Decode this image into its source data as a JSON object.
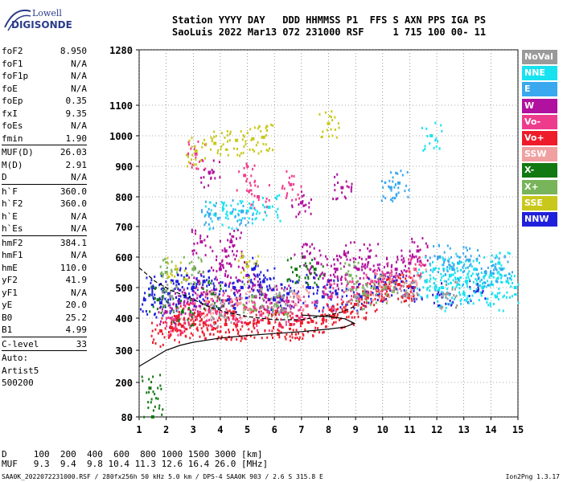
{
  "logo": {
    "line1": "Lowell",
    "line2": "DIGISONDE"
  },
  "header": {
    "labels": "Station YYYY DAY   DDD HHMMSS P1  FFS S AXN PPS IGA PS",
    "values": "SaoLuis 2022 Mar13 072 231000 RSF     1 715 100 00- 11"
  },
  "params": {
    "group1": [
      {
        "label": "foF2",
        "value": "8.950"
      },
      {
        "label": "foF1",
        "value": "N/A"
      },
      {
        "label": "foF1p",
        "value": "N/A"
      },
      {
        "label": "foE",
        "value": "N/A"
      },
      {
        "label": "foEp",
        "value": "0.35"
      },
      {
        "label": "fxI",
        "value": "9.35"
      },
      {
        "label": "foEs",
        "value": "N/A"
      },
      {
        "label": "fmin",
        "value": "1.90"
      }
    ],
    "group2": [
      {
        "label": "MUF(D)",
        "value": "26.03"
      },
      {
        "label": "M(D)",
        "value": "2.91"
      },
      {
        "label": "D",
        "value": "N/A"
      }
    ],
    "group3": [
      {
        "label": "h`F",
        "value": "360.0"
      },
      {
        "label": "h`F2",
        "value": "360.0"
      },
      {
        "label": "h`E",
        "value": "N/A"
      },
      {
        "label": "h`Es",
        "value": "N/A"
      }
    ],
    "group4": [
      {
        "label": "hmF2",
        "value": "384.1"
      },
      {
        "label": "hmF1",
        "value": "N/A"
      },
      {
        "label": "hmE",
        "value": "110.0"
      },
      {
        "label": "yF2",
        "value": "41.9"
      },
      {
        "label": "yF1",
        "value": "N/A"
      },
      {
        "label": "yE",
        "value": "20.0"
      },
      {
        "label": "B0",
        "value": "25.2"
      },
      {
        "label": "B1",
        "value": "4.99"
      }
    ],
    "group5": [
      {
        "label": "C-level",
        "value": "33"
      }
    ],
    "auto_lines": [
      "Auto:",
      "Artist5",
      "500200"
    ]
  },
  "legend": [
    {
      "label": "NoVal",
      "color": "#9a9a9a"
    },
    {
      "label": "NNE",
      "color": "#19e2f0"
    },
    {
      "label": "E",
      "color": "#3aa8ee"
    },
    {
      "label": "W",
      "color": "#b0119e"
    },
    {
      "label": "Vo-",
      "color": "#ee3c8c"
    },
    {
      "label": "Vo+",
      "color": "#ee1c2a"
    },
    {
      "label": "SSW",
      "color": "#f0a0a0"
    },
    {
      "label": "X-",
      "color": "#127812"
    },
    {
      "label": "X+",
      "color": "#78b45a"
    },
    {
      "label": "SSE",
      "color": "#c8c81c"
    },
    {
      "label": "NNW",
      "color": "#2020dc"
    }
  ],
  "distance_table": {
    "row1": "D     100  200  400  600  800 1000 1500 3000 [km]",
    "row2": "MUF   9.3  9.4  9.8 10.4 11.3 12.6 16.4 26.0 [MHz]"
  },
  "footer": {
    "left": "SAA0K_2022072231000.RSF / 280fx256h 50 kHz 5.0 km / DPS-4 SAA0K 903 / 2.6 S 315.8 E",
    "right": "Ion2Png 1.3.17"
  },
  "chart_data": {
    "type": "scatter",
    "title": "",
    "xlabel": "",
    "ylabel": "",
    "xlim": [
      1,
      15
    ],
    "ylim": [
      80,
      1280
    ],
    "x_ticks": [
      1,
      2,
      3,
      4,
      5,
      6,
      7,
      8,
      9,
      10,
      11,
      12,
      13,
      14,
      15
    ],
    "y_ticks": [
      80,
      200,
      300,
      400,
      500,
      600,
      700,
      800,
      900,
      1000,
      1100,
      1280
    ],
    "grid": true,
    "legend_position": "right",
    "series": [
      {
        "name": "W",
        "points": [
          [
            2.0,
            420
          ],
          [
            2.5,
            450
          ],
          [
            3.0,
            460
          ],
          [
            3.2,
            520
          ],
          [
            3.5,
            480
          ],
          [
            4.0,
            560
          ],
          [
            4.2,
            620
          ],
          [
            4.5,
            500
          ],
          [
            5.0,
            540
          ],
          [
            5.3,
            470
          ],
          [
            5.8,
            460
          ],
          [
            6.2,
            470
          ],
          [
            6.5,
            455
          ],
          [
            7.1,
            600
          ],
          [
            7.6,
            580
          ],
          [
            8.0,
            520
          ],
          [
            8.3,
            560
          ],
          [
            8.6,
            610
          ],
          [
            9.1,
            560
          ],
          [
            9.5,
            600
          ],
          [
            10.0,
            540
          ],
          [
            10.5,
            560
          ],
          [
            11.0,
            580
          ],
          [
            11.3,
            620
          ],
          [
            3.3,
            650
          ],
          [
            4.4,
            650
          ],
          [
            3.6,
            880
          ],
          [
            7.0,
            780
          ],
          [
            8.5,
            830
          ]
        ]
      },
      {
        "name": "NNW",
        "points": [
          [
            1.2,
            460
          ],
          [
            1.5,
            500
          ],
          [
            1.8,
            450
          ],
          [
            2.1,
            480
          ],
          [
            2.4,
            520
          ],
          [
            2.7,
            470
          ],
          [
            3.0,
            500
          ],
          [
            3.4,
            520
          ],
          [
            3.8,
            480
          ],
          [
            4.3,
            460
          ],
          [
            4.8,
            500
          ],
          [
            5.2,
            560
          ],
          [
            5.6,
            520
          ],
          [
            6.0,
            460
          ],
          [
            6.5,
            480
          ],
          [
            7.3,
            500
          ],
          [
            7.8,
            470
          ],
          [
            8.3,
            480
          ],
          [
            9.2,
            470
          ],
          [
            9.8,
            500
          ],
          [
            10.4,
            520
          ],
          [
            11.1,
            500
          ],
          [
            12.2,
            480
          ],
          [
            13.5,
            490
          ]
        ]
      },
      {
        "name": "Vo+",
        "points": [
          [
            1.8,
            360
          ],
          [
            2.2,
            370
          ],
          [
            2.6,
            375
          ],
          [
            3.0,
            380
          ],
          [
            3.4,
            385
          ],
          [
            3.8,
            385
          ],
          [
            4.2,
            380
          ],
          [
            4.6,
            378
          ],
          [
            5.0,
            382
          ],
          [
            5.4,
            388
          ],
          [
            5.8,
            385
          ],
          [
            6.2,
            378
          ],
          [
            6.6,
            380
          ],
          [
            7.0,
            385
          ],
          [
            7.4,
            390
          ],
          [
            7.8,
            395
          ],
          [
            8.2,
            410
          ],
          [
            8.6,
            420
          ],
          [
            9.0,
            445
          ],
          [
            9.4,
            470
          ],
          [
            9.8,
            490
          ],
          [
            10.2,
            500
          ],
          [
            10.6,
            510
          ],
          [
            11.0,
            505
          ],
          [
            2.4,
            400
          ],
          [
            3.2,
            410
          ],
          [
            4.5,
            420
          ]
        ]
      },
      {
        "name": "Vo-",
        "points": [
          [
            2.3,
            395
          ],
          [
            2.9,
            410
          ],
          [
            3.6,
            420
          ],
          [
            4.1,
            440
          ],
          [
            4.9,
            430
          ],
          [
            5.5,
            410
          ],
          [
            6.4,
            420
          ],
          [
            7.2,
            440
          ],
          [
            8.1,
            470
          ],
          [
            8.9,
            500
          ],
          [
            9.6,
            520
          ],
          [
            10.3,
            540
          ],
          [
            11.2,
            560
          ],
          [
            3.1,
            940
          ],
          [
            4.9,
            870
          ],
          [
            5.4,
            800
          ],
          [
            6.6,
            840
          ]
        ]
      },
      {
        "name": "NNE",
        "points": [
          [
            11.6,
            520
          ],
          [
            11.9,
            560
          ],
          [
            12.2,
            500
          ],
          [
            12.5,
            540
          ],
          [
            12.8,
            580
          ],
          [
            13.1,
            520
          ],
          [
            13.4,
            560
          ],
          [
            13.7,
            500
          ],
          [
            14.0,
            540
          ],
          [
            14.3,
            580
          ],
          [
            14.6,
            520
          ],
          [
            14.9,
            500
          ],
          [
            12.0,
            470
          ],
          [
            13.0,
            480
          ],
          [
            14.2,
            470
          ],
          [
            11.8,
            1000
          ],
          [
            3.8,
            740
          ],
          [
            4.4,
            745
          ],
          [
            5.0,
            752
          ],
          [
            5.8,
            765
          ]
        ]
      },
      {
        "name": "E",
        "points": [
          [
            12.1,
            600
          ],
          [
            12.6,
            560
          ],
          [
            13.2,
            590
          ],
          [
            13.8,
            550
          ],
          [
            14.4,
            560
          ],
          [
            10.3,
            830
          ],
          [
            10.6,
            845
          ],
          [
            3.6,
            742
          ],
          [
            4.8,
            750
          ]
        ]
      },
      {
        "name": "X-",
        "points": [
          [
            1.4,
            180
          ],
          [
            1.5,
            80
          ],
          [
            1.7,
            460
          ],
          [
            2.6,
            420
          ],
          [
            6.8,
            560
          ],
          [
            7.5,
            560
          ],
          [
            3.7,
            480
          ]
        ]
      },
      {
        "name": "X+",
        "points": [
          [
            2.0,
            550
          ],
          [
            3.0,
            560
          ],
          [
            5.2,
            470
          ],
          [
            6.1,
            440
          ],
          [
            8.8,
            540
          ],
          [
            9.3,
            480
          ],
          [
            10.1,
            500
          ]
        ]
      },
      {
        "name": "SSE",
        "points": [
          [
            3.1,
            950
          ],
          [
            3.8,
            975
          ],
          [
            4.6,
            985
          ],
          [
            5.2,
            990
          ],
          [
            5.6,
            995
          ],
          [
            8.0,
            1040
          ],
          [
            2.4,
            560
          ],
          [
            5.0,
            570
          ]
        ]
      },
      {
        "name": "SSW",
        "points": [
          [
            3.5,
            455
          ],
          [
            4.7,
            448
          ],
          [
            6.9,
            470
          ],
          [
            9.9,
            505
          ],
          [
            11.2,
            520
          ]
        ]
      },
      {
        "name": "NoVal",
        "points": [
          [
            2.2,
            470
          ],
          [
            4.0,
            410
          ],
          [
            6.3,
            470
          ],
          [
            9.0,
            470
          ],
          [
            10.9,
            480
          ],
          [
            12.4,
            480
          ]
        ]
      }
    ],
    "lines": [
      {
        "name": "profile",
        "points": [
          [
            1,
            250
          ],
          [
            1.5,
            275
          ],
          [
            2,
            300
          ],
          [
            2.5,
            315
          ],
          [
            3,
            325
          ],
          [
            4,
            338
          ],
          [
            5,
            346
          ],
          [
            6,
            352
          ],
          [
            7,
            358
          ],
          [
            8,
            366
          ],
          [
            8.6,
            372
          ],
          [
            8.95,
            384
          ],
          [
            8.6,
            398
          ],
          [
            8,
            405
          ],
          [
            7,
            410
          ]
        ]
      },
      {
        "name": "virtual-trace",
        "points": [
          [
            1,
            565
          ],
          [
            1.6,
            520
          ],
          [
            2.2,
            490
          ],
          [
            2.8,
            470
          ],
          [
            3.5,
            440
          ],
          [
            4.2,
            420
          ],
          [
            5,
            405
          ],
          [
            6,
            395
          ],
          [
            7,
            395
          ],
          [
            8,
            410
          ],
          [
            8.5,
            420
          ],
          [
            9,
            440
          ]
        ]
      }
    ]
  }
}
